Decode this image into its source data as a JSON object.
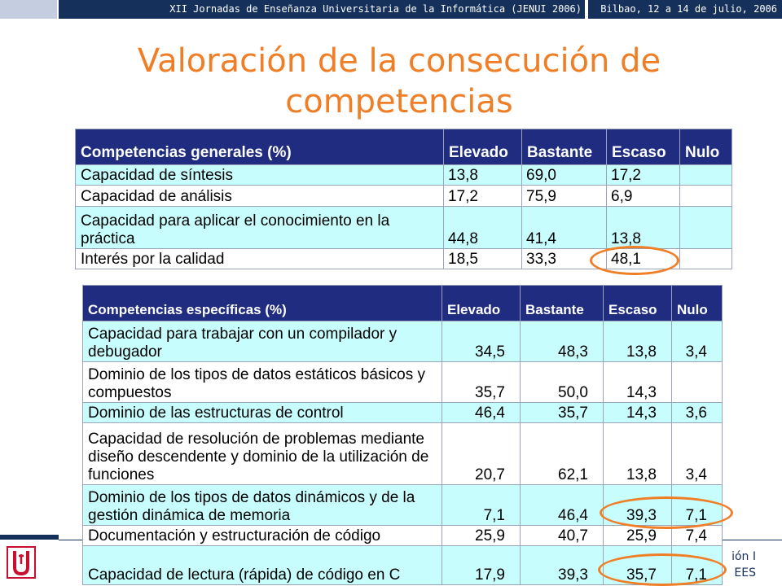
{
  "header": {
    "conference": "XII Jornadas de Enseñanza Universitaria de la Informática (JENUI 2006)",
    "place_date": "Bilbao, 12 a 14 de julio, 2006"
  },
  "slide": {
    "title_line1": "Valoración de la consecución de",
    "title_line2": "competencias"
  },
  "table_general": {
    "columns": [
      "Competencias generales (%)",
      "Elevado",
      "Bastante",
      "Escaso",
      "Nulo"
    ],
    "rows": [
      {
        "label": "Capacidad de síntesis",
        "values": [
          "13,8",
          "69,0",
          "17,2",
          ""
        ]
      },
      {
        "label": "Capacidad de análisis",
        "values": [
          "17,2",
          "75,9",
          "6,9",
          ""
        ]
      },
      {
        "label": "Capacidad para aplicar el conocimiento en la práctica",
        "values": [
          "44,8",
          "41,4",
          "13,8",
          ""
        ]
      },
      {
        "label": "Interés por la calidad",
        "values": [
          "18,5",
          "33,3",
          "48,1",
          ""
        ]
      }
    ]
  },
  "table_specific": {
    "columns": [
      "Competencias específicas (%)",
      "Elevado",
      "Bastante",
      "Escaso",
      "Nulo"
    ],
    "rows": [
      {
        "label": "Capacidad para trabajar con un compilador y debugador",
        "values": [
          "34,5",
          "48,3",
          "13,8",
          "3,4"
        ]
      },
      {
        "label": "Dominio de los tipos de datos estáticos básicos y compuestos",
        "values": [
          "35,7",
          "50,0",
          "14,3",
          ""
        ]
      },
      {
        "label": "Dominio de las estructuras de control",
        "values": [
          "46,4",
          "35,7",
          "14,3",
          "3,6"
        ]
      },
      {
        "label": "Capacidad de resolución de problemas mediante diseño descendente y dominio de la utilización de funciones",
        "values": [
          "20,7",
          "62,1",
          "13,8",
          "3,4"
        ]
      },
      {
        "label": "Dominio de los tipos de datos dinámicos y de la gestión dinámica de memoria",
        "values": [
          "7,1",
          "46,4",
          "39,3",
          "7,1"
        ]
      },
      {
        "label": "Documentación y estructuración de código",
        "values": [
          "25,9",
          "40,7",
          "25,9",
          "7,4"
        ]
      },
      {
        "label": "Capacidad de lectura (rápida) de código en C",
        "values": [
          "17,9",
          "39,3",
          "35,7",
          "7,1"
        ]
      }
    ]
  },
  "footer": {
    "right_line1": "ión I",
    "right_line2": "EES"
  },
  "colors": {
    "accent": "#f07e26",
    "header_navy": "#16305c",
    "table_header": "#1f2c80",
    "row_highlight": "#c7fdfd"
  }
}
